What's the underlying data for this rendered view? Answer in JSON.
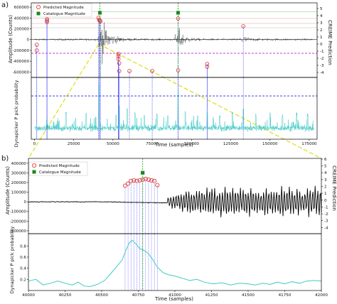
{
  "chart_data": [
    {
      "panel": "a)",
      "type": "line",
      "x_range": [
        -2000,
        180000
      ],
      "xticks": [
        "0",
        "25000",
        "50000",
        "75000",
        "100000",
        "125000",
        "150000",
        "175000"
      ],
      "xlabel": "Time (samples)",
      "upper": {
        "ylabel": "Amplitude (Counts)",
        "yticks": [
          "600000",
          "400000",
          "200000",
          "0",
          "-200000",
          "-400000",
          "-600000"
        ],
        "y_range": [
          -700000,
          680000
        ],
        "right_ylabel": "CREIME Prediction",
        "right_yticks": [
          "5",
          "4",
          "3",
          "2",
          "1",
          "0",
          "-1",
          "-2",
          "-3",
          "-4"
        ],
        "right_range": [
          -4.7,
          5.8
        ],
        "legend": [
          "Predicted Magnitude",
          "Catalogue Magnitude"
        ],
        "legend_position": "upper-left",
        "noise_bursts_x": [
          42000,
          91000,
          132000
        ],
        "predicted": [
          {
            "x": 1500,
            "y": -0.9
          },
          {
            "x": 1500,
            "y": -0.1
          },
          {
            "x": 8000,
            "y": 3.3
          },
          {
            "x": 8000,
            "y": 3.5
          },
          {
            "x": 8000,
            "y": 3.1
          },
          {
            "x": 40800,
            "y": 3.7
          },
          {
            "x": 41200,
            "y": 3.4
          },
          {
            "x": 41700,
            "y": 3.3
          },
          {
            "x": 42000,
            "y": 3.2
          },
          {
            "x": 53500,
            "y": -1.4
          },
          {
            "x": 53500,
            "y": -1.7
          },
          {
            "x": 53500,
            "y": -2.1
          },
          {
            "x": 54000,
            "y": -2.7
          },
          {
            "x": 54000,
            "y": -3.8
          },
          {
            "x": 60500,
            "y": -3.8
          },
          {
            "x": 75000,
            "y": -3.8
          },
          {
            "x": 91500,
            "y": 3.6
          },
          {
            "x": 91500,
            "y": -3.7
          },
          {
            "x": 110000,
            "y": -3.2
          },
          {
            "x": 110000,
            "y": -2.8
          },
          {
            "x": 133000,
            "y": 2.5
          }
        ],
        "catalogue": [
          {
            "x": 41700,
            "y": 4.4
          },
          {
            "x": 91500,
            "y": 4.4
          }
        ]
      },
      "lower": {
        "ylabel": "Dynapicker P pick probability",
        "baseline": 0.18,
        "threshold": 0.7,
        "spikes": [
          {
            "x": 8000,
            "y": 0.3
          },
          {
            "x": 20000,
            "y": 0.46
          },
          {
            "x": 33000,
            "y": 0.43
          },
          {
            "x": 41000,
            "y": 0.9
          },
          {
            "x": 52000,
            "y": 0.42
          },
          {
            "x": 54000,
            "y": 0.58
          },
          {
            "x": 59000,
            "y": 0.51
          },
          {
            "x": 64000,
            "y": 0.44
          },
          {
            "x": 70000,
            "y": 0.41
          },
          {
            "x": 78000,
            "y": 0.43
          },
          {
            "x": 85000,
            "y": 0.39
          },
          {
            "x": 91500,
            "y": 0.78
          },
          {
            "x": 96000,
            "y": 0.46
          },
          {
            "x": 104000,
            "y": 0.41
          },
          {
            "x": 110000,
            "y": 0.48
          },
          {
            "x": 118000,
            "y": 0.4
          },
          {
            "x": 126000,
            "y": 0.45
          },
          {
            "x": 133000,
            "y": 0.51
          },
          {
            "x": 141000,
            "y": 0.42
          },
          {
            "x": 150000,
            "y": 0.44
          },
          {
            "x": 158000,
            "y": 0.4
          },
          {
            "x": 167000,
            "y": 0.43
          },
          {
            "x": 174000,
            "y": 0.42
          }
        ]
      }
    },
    {
      "panel": "b)",
      "type": "line",
      "x_range": [
        40000,
        42000
      ],
      "xticks": [
        "40000",
        "40250",
        "40500",
        "40750",
        "41000",
        "41250",
        "41500",
        "41750",
        "42000"
      ],
      "xlabel": "Time (samples)",
      "upper": {
        "ylabel": "Amplitude (Counts)",
        "yticks": [
          "400000",
          "300000",
          "200000",
          "100000",
          "0",
          "-100000",
          "-200000",
          "-300000"
        ],
        "y_range": [
          -330000,
          450000
        ],
        "right_ylabel": "CREIME Prediction",
        "right_yticks": [
          "6",
          "5",
          "4",
          "3",
          "2",
          "1",
          "0",
          "-1",
          "-2",
          "-3",
          "-4"
        ],
        "right_range": [
          -4.9,
          6.1
        ],
        "legend": [
          "Predicted Magnitude",
          "Catalogue Magnitude"
        ],
        "legend_position": "upper-left",
        "onset_x": 40950,
        "predicted": [
          {
            "x": 40660,
            "y": 2.1
          },
          {
            "x": 40680,
            "y": 2.4
          },
          {
            "x": 40700,
            "y": 2.8
          },
          {
            "x": 40720,
            "y": 2.9
          },
          {
            "x": 40740,
            "y": 2.8
          },
          {
            "x": 40760,
            "y": 2.9
          },
          {
            "x": 40780,
            "y": 3.0
          },
          {
            "x": 40800,
            "y": 3.1
          },
          {
            "x": 40820,
            "y": 3.0
          },
          {
            "x": 40840,
            "y": 2.9
          },
          {
            "x": 40860,
            "y": 2.8
          },
          {
            "x": 40880,
            "y": 2.2
          }
        ],
        "catalogue": [
          {
            "x": 40780,
            "y": 4.0
          }
        ]
      },
      "lower": {
        "ylabel": "Dynapicker P pick probability",
        "yticks": [
          "0.8",
          "0.6",
          "0.4",
          "0.2"
        ],
        "y_range": [
          0,
          1.02
        ],
        "curve": [
          {
            "x": 40000,
            "y": 0.17
          },
          {
            "x": 40050,
            "y": 0.2
          },
          {
            "x": 40100,
            "y": 0.1
          },
          {
            "x": 40150,
            "y": 0.13
          },
          {
            "x": 40200,
            "y": 0.17
          },
          {
            "x": 40250,
            "y": 0.13
          },
          {
            "x": 40300,
            "y": 0.1
          },
          {
            "x": 40340,
            "y": 0.15
          },
          {
            "x": 40380,
            "y": 0.08
          },
          {
            "x": 40420,
            "y": 0.07
          },
          {
            "x": 40470,
            "y": 0.11
          },
          {
            "x": 40520,
            "y": 0.18
          },
          {
            "x": 40560,
            "y": 0.3
          },
          {
            "x": 40600,
            "y": 0.42
          },
          {
            "x": 40640,
            "y": 0.55
          },
          {
            "x": 40670,
            "y": 0.75
          },
          {
            "x": 40690,
            "y": 0.86
          },
          {
            "x": 40710,
            "y": 0.9
          },
          {
            "x": 40740,
            "y": 0.82
          },
          {
            "x": 40760,
            "y": 0.75
          },
          {
            "x": 40790,
            "y": 0.72
          },
          {
            "x": 40820,
            "y": 0.66
          },
          {
            "x": 40850,
            "y": 0.55
          },
          {
            "x": 40880,
            "y": 0.42
          },
          {
            "x": 40920,
            "y": 0.32
          },
          {
            "x": 40960,
            "y": 0.28
          },
          {
            "x": 41000,
            "y": 0.26
          },
          {
            "x": 41050,
            "y": 0.22
          },
          {
            "x": 41100,
            "y": 0.18
          },
          {
            "x": 41150,
            "y": 0.2
          },
          {
            "x": 41200,
            "y": 0.15
          },
          {
            "x": 41260,
            "y": 0.12
          },
          {
            "x": 41320,
            "y": 0.14
          },
          {
            "x": 41380,
            "y": 0.1
          },
          {
            "x": 41440,
            "y": 0.13
          },
          {
            "x": 41500,
            "y": 0.12
          },
          {
            "x": 41550,
            "y": 0.1
          },
          {
            "x": 41600,
            "y": 0.13
          },
          {
            "x": 41650,
            "y": 0.11
          },
          {
            "x": 41700,
            "y": 0.15
          },
          {
            "x": 41750,
            "y": 0.12
          },
          {
            "x": 41800,
            "y": 0.16
          },
          {
            "x": 41850,
            "y": 0.13
          },
          {
            "x": 41900,
            "y": 0.17
          },
          {
            "x": 41950,
            "y": 0.18
          },
          {
            "x": 42000,
            "y": 0.17
          }
        ]
      }
    }
  ],
  "colors": {
    "predicted": "#d62728",
    "catalogue": "#2ca02c",
    "probability": "#3fc9c4",
    "threshold": "#1f2bd6",
    "magenta": "#b000c0",
    "zoom": "#e0e020",
    "waveform": "#000000"
  }
}
